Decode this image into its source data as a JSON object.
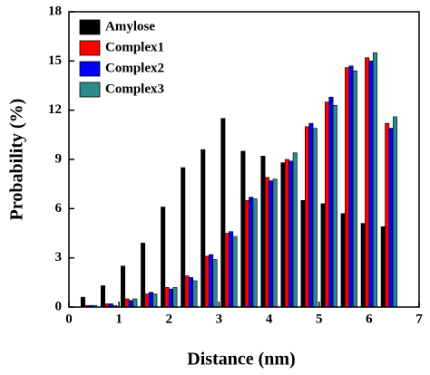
{
  "chart_data": {
    "type": "bar",
    "x_label": "Distance (nm)",
    "y_label": "Probability (%)",
    "x": [
      0.4,
      0.8,
      1.2,
      1.6,
      2.0,
      2.4,
      2.8,
      3.2,
      3.6,
      4.0,
      4.4,
      4.8,
      5.2,
      5.6,
      6.0,
      6.4
    ],
    "series": [
      {
        "name": "Amylose",
        "color": "#000000",
        "values": [
          0.6,
          1.3,
          2.5,
          3.9,
          6.1,
          8.5,
          9.6,
          11.5,
          9.5,
          9.2,
          8.8,
          6.5,
          6.3,
          5.7,
          5.1,
          4.9
        ]
      },
      {
        "name": "Complex1",
        "color": "#ff0000",
        "values": [
          0.1,
          0.2,
          0.5,
          0.8,
          1.2,
          1.9,
          3.1,
          4.5,
          6.5,
          7.9,
          9.0,
          11.0,
          12.5,
          14.6,
          15.2,
          11.2
        ]
      },
      {
        "name": "Complex2",
        "color": "#0000ff",
        "values": [
          0.1,
          0.2,
          0.4,
          0.9,
          1.1,
          1.8,
          3.2,
          4.6,
          6.7,
          7.7,
          8.9,
          11.2,
          12.8,
          14.7,
          15.0,
          10.9
        ]
      },
      {
        "name": "Complex3",
        "color": "#2a8c8c",
        "values": [
          0.1,
          0.1,
          0.5,
          0.8,
          1.2,
          1.6,
          2.9,
          4.3,
          6.6,
          7.8,
          9.4,
          10.9,
          12.3,
          14.4,
          15.5,
          11.6
        ]
      }
    ],
    "xlim": [
      0,
      7
    ],
    "xticks": [
      0,
      1,
      2,
      3,
      4,
      5,
      6,
      7
    ],
    "ylim": [
      0,
      18
    ],
    "yticks": [
      0,
      3,
      6,
      9,
      12,
      15,
      18
    ],
    "legend": "upper-left"
  }
}
